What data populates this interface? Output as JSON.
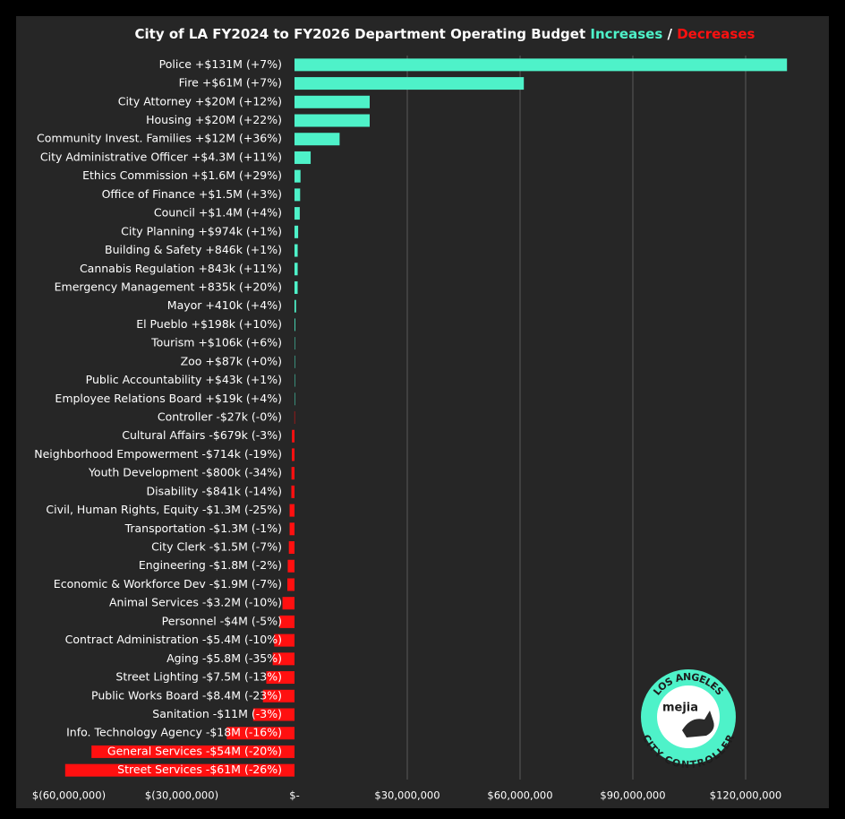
{
  "chart_data": {
    "type": "bar",
    "orientation": "horizontal",
    "title": "City of LA FY2024 to FY2026 Department Operating Budget",
    "title_increase": "Increases",
    "title_separator": "/",
    "title_decrease": "Decreases",
    "categories": [
      "Police +$131M (+7%)",
      "Fire +$61M (+7%)",
      "City Attorney +$20M (+12%)",
      "Housing +$20M (+22%)",
      "Community Invest. Families +$12M (+36%)",
      "City Administrative Officer +$4.3M (+11%)",
      "Ethics Commission +$1.6M (+29%)",
      "Office of Finance +$1.5M (+3%)",
      "Council +$1.4M (+4%)",
      "City Planning +$974k (+1%)",
      "Building & Safety +846k (+1%)",
      "Cannabis Regulation +843k (+11%)",
      "Emergency Management +835k (+20%)",
      "Mayor +410k (+4%)",
      "El Pueblo +$198k (+10%)",
      "Tourism +$106k (+6%)",
      "Zoo +$87k (+0%)",
      "Public Accountability +$43k (+1%)",
      "Employee Relations Board +$19k (+4%)",
      "Controller -$27k (-0%)",
      "Cultural Affairs -$679k (-3%)",
      "Neighborhood Empowerment -$714k (-19%)",
      "Youth Development -$800k (-34%)",
      "Disability -$841k (-14%)",
      "Civil, Human Rights, Equity -$1.3M (-25%)",
      "Transportation -$1.3M (-1%)",
      "City Clerk -$1.5M (-7%)",
      "Engineering -$1.8M (-2%)",
      "Economic & Workforce Dev -$1.9M (-7%)",
      "Animal Services -$3.2M (-10%)",
      "Personnel -$4M (-5%)",
      "Contract Administration -$5.4M (-10%)",
      "Aging -$5.8M (-35%)",
      "Street Lighting -$7.5M (-13%)",
      "Public Works Board -$8.4M (-23%)",
      "Sanitation -$11M (-3%)",
      "Info. Technology Agency -$18M (-16%)",
      "General Services -$54M (-20%)",
      "Street Services -$61M (-26%)"
    ],
    "values": [
      131000000,
      61000000,
      20000000,
      20000000,
      12000000,
      4300000,
      1600000,
      1500000,
      1400000,
      974000,
      846000,
      843000,
      835000,
      410000,
      198000,
      106000,
      87000,
      43000,
      19000,
      -27000,
      -679000,
      -714000,
      -800000,
      -841000,
      -1300000,
      -1300000,
      -1500000,
      -1800000,
      -1900000,
      -3200000,
      -4000000,
      -5400000,
      -5800000,
      -7500000,
      -8400000,
      -11000000,
      -18000000,
      -54000000,
      -61000000
    ],
    "increase_color": "#4ef2c9",
    "decrease_color": "#ff1010",
    "xlim": [
      -60000000,
      136000000
    ],
    "xticks": [
      {
        "value": -60000000,
        "label": "$(60,000,000)"
      },
      {
        "value": -30000000,
        "label": "$(30,000,000)"
      },
      {
        "value": 0,
        "label": "$-"
      },
      {
        "value": 30000000,
        "label": "$30,000,000"
      },
      {
        "value": 60000000,
        "label": "$60,000,000"
      },
      {
        "value": 90000000,
        "label": "$90,000,000"
      },
      {
        "value": 120000000,
        "label": "$120,000,000"
      }
    ],
    "grid": true,
    "logo": {
      "top": "LOS ANGELES",
      "name": "mejia",
      "bottom": "CITY CONTROLLER"
    }
  }
}
